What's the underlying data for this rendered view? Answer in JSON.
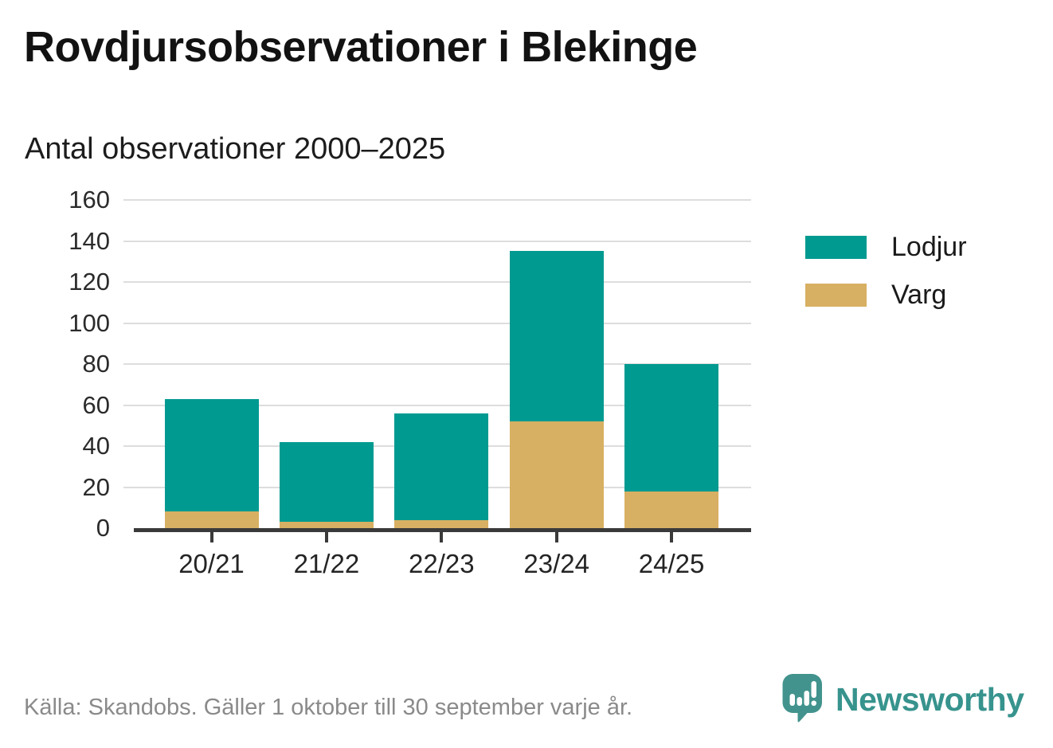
{
  "header": {
    "title": "Rovdjursobservationer i Blekinge",
    "subtitle": "Antal observationer 2000–2025"
  },
  "footer": {
    "source": "Källa: Skandobs. Gäller 1 oktober till 30 september varje år.",
    "brand": "Newsworthy"
  },
  "colors": {
    "lodjur": "#009a90",
    "varg": "#d8b063",
    "brand": "#37938d",
    "axis": "#3a3a3a",
    "grid": "#dddddd",
    "title_text": "#121212",
    "label_text": "#2b2b2b",
    "muted_text": "#8a8a8a"
  },
  "icons": {
    "brand_logo": "newsworthy-speech-bubble-bar-chart-icon"
  },
  "chart_data": {
    "type": "bar",
    "stacked": true,
    "title": "Rovdjursobservationer i Blekinge",
    "subtitle": "Antal observationer 2000–2025",
    "categories": [
      "20/21",
      "21/22",
      "22/23",
      "23/24",
      "24/25"
    ],
    "series": [
      {
        "name": "Varg",
        "color": "#d8b063",
        "values": [
          8,
          3,
          4,
          52,
          18
        ]
      },
      {
        "name": "Lodjur",
        "color": "#009a90",
        "values": [
          55,
          39,
          52,
          83,
          62
        ]
      }
    ],
    "stacked_totals": [
      63,
      42,
      56,
      135,
      80
    ],
    "xlabel": "",
    "ylabel": "",
    "ylim": [
      0,
      160
    ],
    "yticks": [
      0,
      20,
      40,
      60,
      80,
      100,
      120,
      140,
      160
    ],
    "grid": "horizontal",
    "legend": {
      "position": "right",
      "items": [
        {
          "label": "Lodjur",
          "color": "#009a90"
        },
        {
          "label": "Varg",
          "color": "#d8b063"
        }
      ]
    }
  }
}
